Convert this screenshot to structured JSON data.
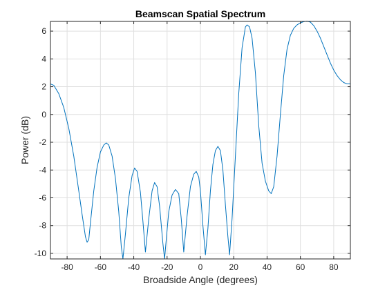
{
  "chart_data": {
    "type": "line",
    "title": "Beamscan Spatial Spectrum",
    "xlabel": "Broadside Angle (degrees)",
    "ylabel": "Power (dB)",
    "xlim": [
      -90,
      90
    ],
    "ylim": [
      -10.4,
      6.7
    ],
    "xticks": [
      -80,
      -60,
      -40,
      -20,
      0,
      20,
      40,
      60,
      80
    ],
    "yticks": [
      -10,
      -8,
      -6,
      -4,
      -2,
      0,
      2,
      4,
      6
    ],
    "grid": true,
    "box": true,
    "series": [
      {
        "color": "#0072bd",
        "points": [
          [
            -90,
            2.2
          ],
          [
            -88,
            2.1
          ],
          [
            -85,
            1.5
          ],
          [
            -82,
            0.5
          ],
          [
            -79,
            -1.0
          ],
          [
            -76,
            -3.0
          ],
          [
            -73,
            -5.5
          ],
          [
            -71,
            -7.2
          ],
          [
            -69,
            -8.8
          ],
          [
            -68,
            -9.2
          ],
          [
            -67,
            -9.0
          ],
          [
            -66,
            -7.8
          ],
          [
            -64,
            -5.5
          ],
          [
            -62,
            -3.8
          ],
          [
            -60,
            -2.7
          ],
          [
            -58,
            -2.2
          ],
          [
            -56.5,
            -2.05
          ],
          [
            -55,
            -2.2
          ],
          [
            -53,
            -3.0
          ],
          [
            -51,
            -4.6
          ],
          [
            -49,
            -7.0
          ],
          [
            -47.5,
            -9.5
          ],
          [
            -46.5,
            -10.4
          ],
          [
            -45,
            -8.6
          ],
          [
            -43,
            -6.0
          ],
          [
            -41,
            -4.4
          ],
          [
            -39.5,
            -3.85
          ],
          [
            -38,
            -4.1
          ],
          [
            -36,
            -5.6
          ],
          [
            -34.5,
            -7.7
          ],
          [
            -33,
            -9.9
          ],
          [
            -31,
            -7.5
          ],
          [
            -29,
            -5.5
          ],
          [
            -27.5,
            -4.9
          ],
          [
            -26,
            -5.2
          ],
          [
            -24.5,
            -6.6
          ],
          [
            -22.5,
            -9.3
          ],
          [
            -21.5,
            -10.4
          ],
          [
            -20.5,
            -9.0
          ],
          [
            -19,
            -7.0
          ],
          [
            -17,
            -5.8
          ],
          [
            -15,
            -5.4
          ],
          [
            -13,
            -5.7
          ],
          [
            -11.5,
            -7.5
          ],
          [
            -10,
            -9.9
          ],
          [
            -8,
            -7.3
          ],
          [
            -6,
            -5.2
          ],
          [
            -4,
            -4.3
          ],
          [
            -2.5,
            -4.1
          ],
          [
            -1,
            -4.5
          ],
          [
            0,
            -5.5
          ],
          [
            1.5,
            -8.0
          ],
          [
            3,
            -10.1
          ],
          [
            4.5,
            -8.2
          ],
          [
            6,
            -5.5
          ],
          [
            7.5,
            -3.6
          ],
          [
            9,
            -2.6
          ],
          [
            10.5,
            -2.3
          ],
          [
            12,
            -2.6
          ],
          [
            13.5,
            -4.0
          ],
          [
            15,
            -6.5
          ],
          [
            16.5,
            -8.8
          ],
          [
            17.5,
            -10.1
          ],
          [
            19,
            -7.5
          ],
          [
            21,
            -3.0
          ],
          [
            23,
            1.5
          ],
          [
            25,
            4.8
          ],
          [
            27,
            6.3
          ],
          [
            28,
            6.45
          ],
          [
            29.5,
            6.3
          ],
          [
            31,
            5.5
          ],
          [
            33,
            3.0
          ],
          [
            35,
            -0.8
          ],
          [
            37,
            -3.5
          ],
          [
            39,
            -4.8
          ],
          [
            41,
            -5.5
          ],
          [
            42.5,
            -5.7
          ],
          [
            44,
            -5.2
          ],
          [
            46,
            -3.0
          ],
          [
            48,
            0.0
          ],
          [
            50,
            2.8
          ],
          [
            52,
            4.7
          ],
          [
            54,
            5.7
          ],
          [
            56,
            6.2
          ],
          [
            58,
            6.45
          ],
          [
            60,
            6.6
          ],
          [
            62,
            6.68
          ],
          [
            64,
            6.72
          ],
          [
            66,
            6.65
          ],
          [
            68,
            6.4
          ],
          [
            70,
            6.0
          ],
          [
            72,
            5.5
          ],
          [
            74,
            4.9
          ],
          [
            76,
            4.3
          ],
          [
            78,
            3.7
          ],
          [
            80,
            3.2
          ],
          [
            82,
            2.8
          ],
          [
            84,
            2.5
          ],
          [
            86,
            2.3
          ],
          [
            88,
            2.2
          ],
          [
            90,
            2.2
          ]
        ]
      }
    ]
  }
}
